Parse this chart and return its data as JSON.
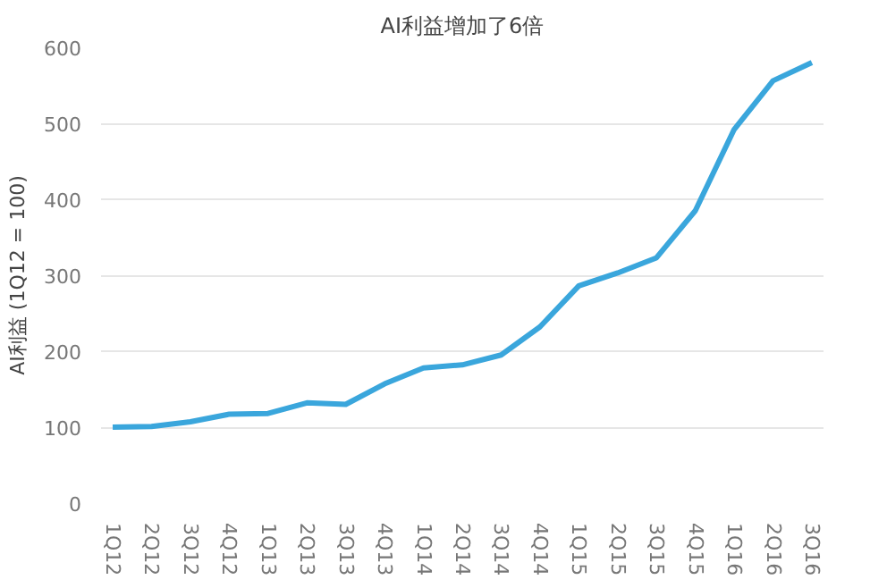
{
  "chart_data": {
    "type": "line",
    "title": "AI利益增加了6倍",
    "ylabel": "AI利益 (1Q12 = 100)",
    "categories": [
      "1Q12",
      "2Q12",
      "3Q12",
      "4Q12",
      "1Q13",
      "2Q13",
      "3Q13",
      "4Q13",
      "1Q14",
      "2Q14",
      "3Q14",
      "4Q14",
      "1Q15",
      "2Q15",
      "3Q15",
      "4Q15",
      "1Q16",
      "2Q16",
      "3Q16"
    ],
    "series": [
      {
        "color": "#3aa6dc",
        "values": [
          100,
          101,
          107,
          117,
          118,
          132,
          130,
          157,
          178,
          182,
          195,
          232,
          286,
          303,
          323,
          385,
          492,
          556,
          580
        ]
      }
    ],
    "ylim": [
      0,
      600
    ],
    "yticks": [
      0,
      100,
      200,
      300,
      400,
      500,
      600
    ],
    "grid": "y",
    "marker": "none",
    "line_style": "solid"
  }
}
